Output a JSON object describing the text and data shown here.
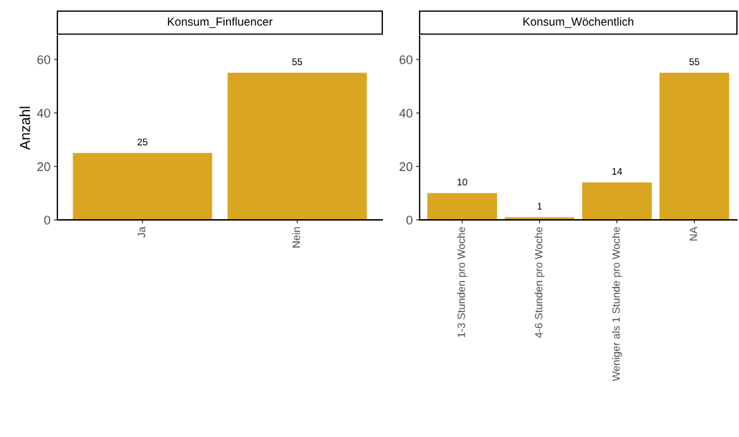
{
  "chart_data": [
    {
      "type": "bar",
      "title": "Konsum_Finfluencer",
      "ylabel": "Anzahl",
      "categories": [
        "Ja",
        "Nein"
      ],
      "values": [
        25,
        55
      ],
      "color": "#daa520",
      "ylim": [
        0,
        68.8
      ],
      "yticks": [
        0,
        20,
        40,
        60
      ],
      "data_labels": true,
      "grid": false,
      "legend": false
    },
    {
      "type": "bar",
      "title": "Konsum_Wöchentlich",
      "categories": [
        "1-3 Stunden pro Woche",
        "4-6 Stunden pro Woche",
        "Weniger als 1 Stunde pro Woche",
        "NA"
      ],
      "values": [
        10,
        1,
        14,
        55
      ],
      "color": "#daa520",
      "ylim": [
        0,
        68.8
      ],
      "yticks": [
        0,
        20,
        40,
        60
      ],
      "data_labels": true,
      "grid": false,
      "legend": false
    }
  ]
}
